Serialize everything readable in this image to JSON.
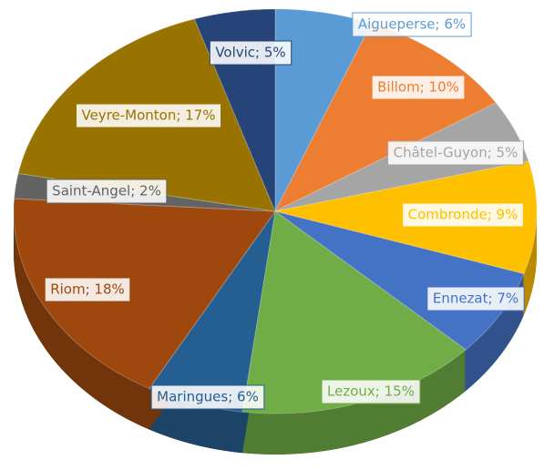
{
  "chart_data": {
    "type": "pie",
    "values": [
      6,
      10,
      5,
      9,
      7,
      15,
      6,
      18,
      2,
      17,
      5
    ],
    "value_labels": [
      "Aigueperse; 6%",
      "Billom; 10%",
      "Châtel-Guyon; 5%",
      "Combronde; 9%",
      "Ennezat; 7%",
      "Lezoux; 15%",
      "Maringues; 6%",
      "Riom; 18%",
      "Saint-Angel; 2%",
      "Veyre-Monton; 17%",
      "Volvic; 5%"
    ],
    "colors": [
      "#5b9bd5",
      "#ed7d31",
      "#a5a5a5",
      "#ffc000",
      "#4472c4",
      "#70ad47",
      "#255e91",
      "#9e480e",
      "#636363",
      "#997300",
      "#264478"
    ]
  }
}
